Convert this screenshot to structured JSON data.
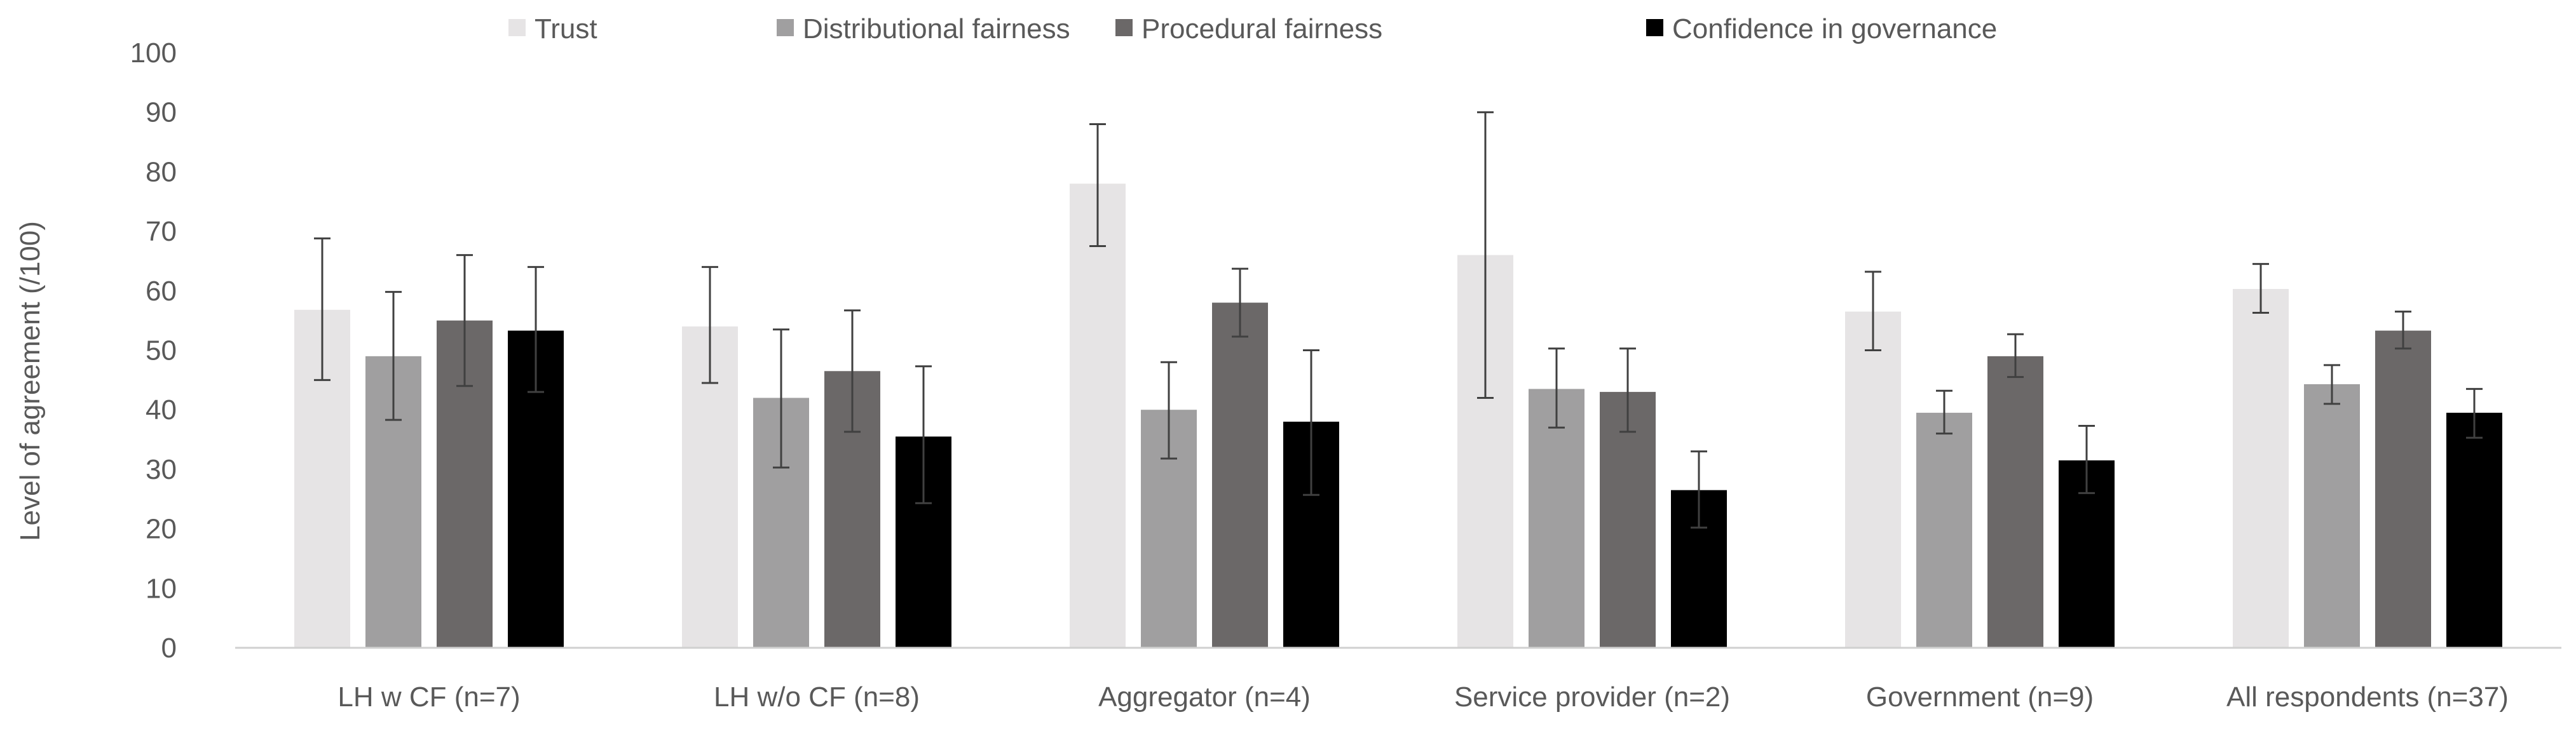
{
  "chart_data": {
    "type": "bar",
    "title": "",
    "xlabel": "",
    "ylabel": "Level of agreement (/100)",
    "ylim": [
      0,
      100
    ],
    "yticks": [
      "0",
      "10",
      "20",
      "30",
      "40",
      "50",
      "60",
      "70",
      "80",
      "90",
      "100"
    ],
    "grid": false,
    "legend_position": "top",
    "error_bars": true,
    "categories": [
      "LH w CF (n=7)",
      "LH w/o CF (n=8)",
      "Aggregator (n=4)",
      "Service provider (n=2)",
      "Government (n=9)",
      "All respondents (n=37)"
    ],
    "series": [
      {
        "name": "Trust",
        "color": "#e6e4e5",
        "values": [
          56.8,
          54,
          78,
          66,
          56.5,
          60.3
        ],
        "err_low": [
          45,
          44.5,
          67.5,
          42,
          50,
          56.3
        ],
        "err_high": [
          68.8,
          64,
          88,
          90,
          63.2,
          64.5
        ]
      },
      {
        "name": "Distributional fairness",
        "color": "#a09fa0",
        "values": [
          49,
          42,
          40,
          43.5,
          39.5,
          44.3
        ],
        "err_low": [
          38.3,
          30.3,
          31.8,
          37,
          36,
          41
        ],
        "err_high": [
          59.8,
          53.5,
          48,
          50.3,
          43.2,
          47.5
        ]
      },
      {
        "name": "Procedural fairness",
        "color": "#6b6868",
        "values": [
          55,
          46.5,
          58,
          43,
          49,
          53.3
        ],
        "err_low": [
          44,
          36.3,
          52.3,
          36.3,
          45.5,
          50.3
        ],
        "err_high": [
          66,
          56.7,
          63.7,
          50.3,
          52.7,
          56.5
        ]
      },
      {
        "name": "Confidence in governance",
        "color": "#000000",
        "values": [
          53.3,
          35.5,
          38,
          26.5,
          31.5,
          39.5
        ],
        "err_low": [
          43,
          24.3,
          25.7,
          20.2,
          26,
          35.3
        ],
        "err_high": [
          64,
          47.3,
          50,
          33,
          37.3,
          43.5
        ]
      }
    ]
  }
}
